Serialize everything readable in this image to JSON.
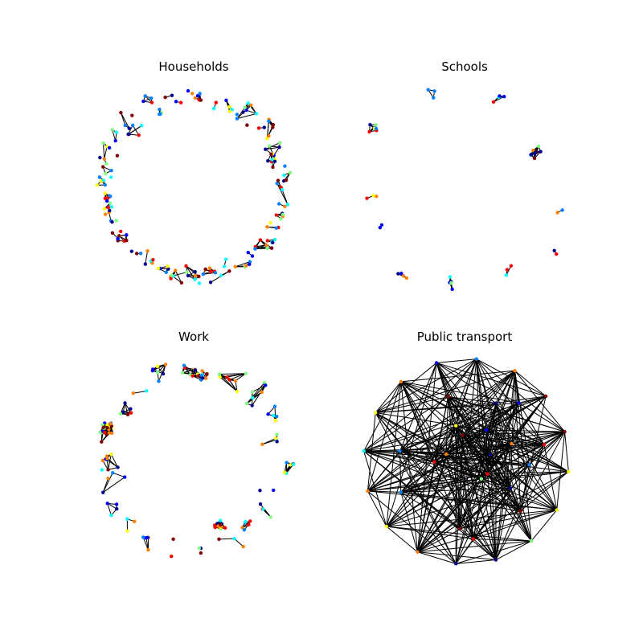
{
  "figure": {
    "panels": [
      {
        "id": "households",
        "title": "Households"
      },
      {
        "id": "schools",
        "title": "Schools"
      },
      {
        "id": "work",
        "title": "Work"
      },
      {
        "id": "public-transport",
        "title": "Public transport"
      }
    ]
  },
  "palette": [
    "#00008f",
    "#0000ff",
    "#0080ff",
    "#00ffff",
    "#80ff80",
    "#ffff00",
    "#ff8000",
    "#ff0000",
    "#800000"
  ]
}
